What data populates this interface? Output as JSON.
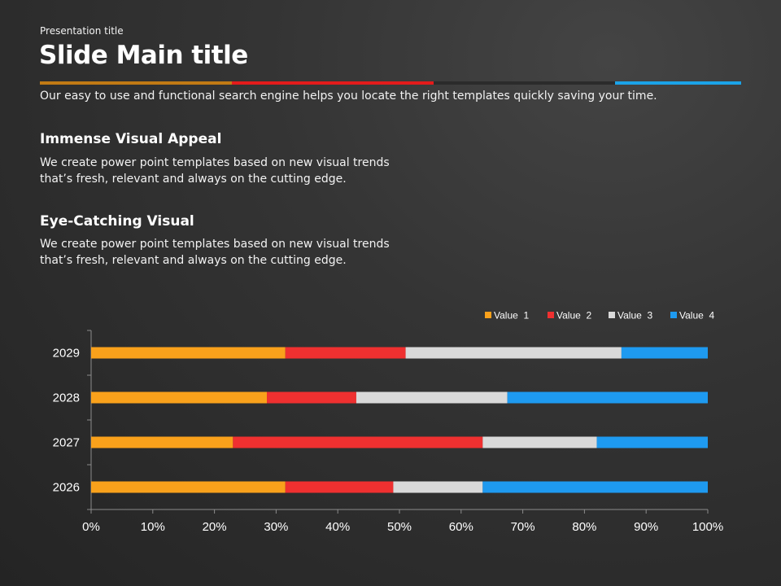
{
  "header": {
    "presentation_title": "Presentation title",
    "main_title": "Slide Main title",
    "accent_colors": [
      "#c17a14",
      "#e31b1b",
      "#2b2b2b",
      "#1ba3e8"
    ],
    "intro_text": "Our easy to use and functional search engine helps you locate the right templates quickly saving your time."
  },
  "sections": [
    {
      "heading": "Immense Visual Appeal",
      "body_line1": "We create power point templates based on new visual trends",
      "body_line2": "that’s fresh, relevant and always on the cutting edge."
    },
    {
      "heading": "Eye-Catching Visual",
      "body_line1": "We create power point templates based on new visual trends",
      "body_line2": "that’s fresh, relevant and always on the cutting edge."
    }
  ],
  "chart_data": {
    "type": "bar",
    "orientation": "horizontal",
    "stacked": "100%",
    "categories": [
      "2029",
      "2028",
      "2027",
      "2026"
    ],
    "series": [
      {
        "name": "Value  1",
        "color": "#f9a11b",
        "values": [
          31.5,
          28.5,
          23,
          31.5
        ]
      },
      {
        "name": "Value  2",
        "color": "#ef3030",
        "values": [
          19.5,
          14.5,
          40.5,
          17.5
        ]
      },
      {
        "name": "Value  3",
        "color": "#d9d9d9",
        "values": [
          35,
          24.5,
          18.5,
          14.5
        ]
      },
      {
        "name": "Value  4",
        "color": "#1e9af0",
        "values": [
          14,
          32.5,
          18,
          36.5
        ]
      }
    ],
    "xticks": [
      "0%",
      "10%",
      "20%",
      "30%",
      "40%",
      "50%",
      "60%",
      "70%",
      "80%",
      "90%",
      "100%"
    ],
    "xlim": [
      0,
      100
    ],
    "grid": false,
    "legend_position": "top-right"
  }
}
